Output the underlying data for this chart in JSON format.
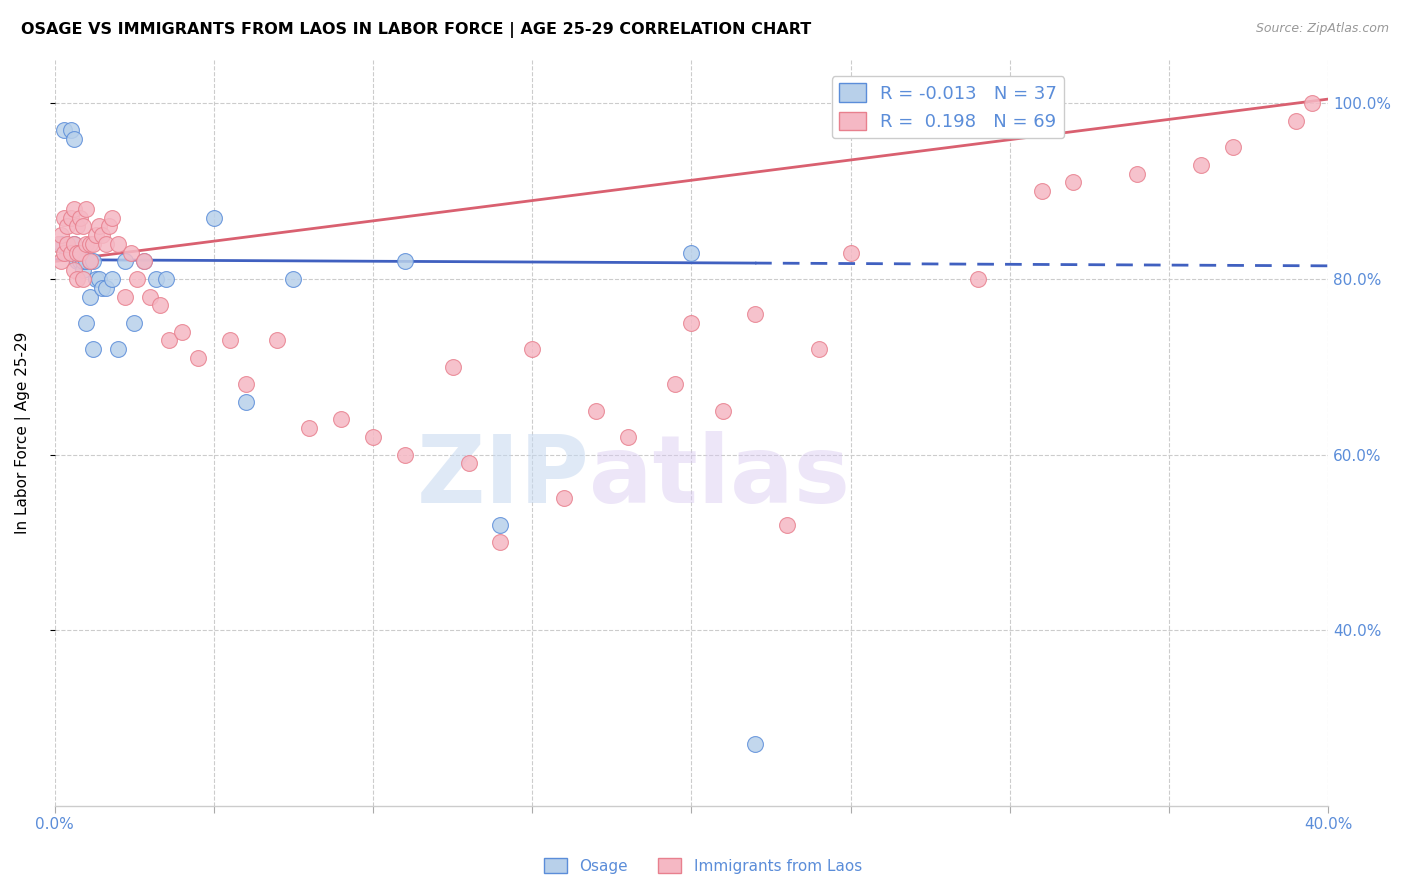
{
  "title": "OSAGE VS IMMIGRANTS FROM LAOS IN LABOR FORCE | AGE 25-29 CORRELATION CHART",
  "source": "Source: ZipAtlas.com",
  "ylabel": "In Labor Force | Age 25-29",
  "xlim": [
    0.0,
    0.4
  ],
  "ylim": [
    0.2,
    1.05
  ],
  "xticks": [
    0.0,
    0.05,
    0.1,
    0.15,
    0.2,
    0.25,
    0.3,
    0.35,
    0.4
  ],
  "yticks_right": [
    0.4,
    0.6,
    0.8,
    1.0
  ],
  "yticklabels_right": [
    "40.0%",
    "60.0%",
    "80.0%",
    "100.0%"
  ],
  "watermark_zip": "ZIP",
  "watermark_atlas": "atlas",
  "legend_r_blue": "-0.013",
  "legend_n_blue": "37",
  "legend_r_pink": "0.198",
  "legend_n_pink": "69",
  "blue_fill": "#b8d0ea",
  "pink_fill": "#f5b8c4",
  "blue_edge": "#5b8dd9",
  "pink_edge": "#e8808e",
  "blue_line_color": "#4060c0",
  "pink_line_color": "#d96070",
  "grid_color": "#cccccc",
  "axis_color": "#5b8dd9",
  "blue_scatter_x": [
    0.002,
    0.003,
    0.004,
    0.005,
    0.005,
    0.006,
    0.006,
    0.007,
    0.007,
    0.008,
    0.008,
    0.009,
    0.009,
    0.01,
    0.01,
    0.011,
    0.011,
    0.012,
    0.012,
    0.013,
    0.014,
    0.015,
    0.016,
    0.018,
    0.02,
    0.022,
    0.025,
    0.028,
    0.032,
    0.035,
    0.05,
    0.06,
    0.075,
    0.11,
    0.14,
    0.2,
    0.22
  ],
  "blue_scatter_y": [
    0.84,
    0.97,
    0.83,
    0.97,
    0.83,
    0.96,
    0.84,
    0.83,
    0.82,
    0.83,
    0.82,
    0.81,
    0.82,
    0.82,
    0.75,
    0.82,
    0.78,
    0.82,
    0.72,
    0.8,
    0.8,
    0.79,
    0.79,
    0.8,
    0.72,
    0.82,
    0.75,
    0.82,
    0.8,
    0.8,
    0.87,
    0.66,
    0.8,
    0.82,
    0.52,
    0.83,
    0.27
  ],
  "pink_scatter_x": [
    0.001,
    0.002,
    0.002,
    0.003,
    0.003,
    0.004,
    0.004,
    0.005,
    0.005,
    0.006,
    0.006,
    0.006,
    0.007,
    0.007,
    0.007,
    0.008,
    0.008,
    0.009,
    0.009,
    0.01,
    0.01,
    0.011,
    0.011,
    0.012,
    0.013,
    0.014,
    0.015,
    0.016,
    0.017,
    0.018,
    0.02,
    0.022,
    0.024,
    0.026,
    0.028,
    0.03,
    0.033,
    0.036,
    0.04,
    0.045,
    0.055,
    0.06,
    0.07,
    0.08,
    0.09,
    0.1,
    0.11,
    0.13,
    0.16,
    0.18,
    0.21,
    0.24,
    0.29,
    0.31,
    0.32,
    0.34,
    0.36,
    0.37,
    0.39,
    0.395,
    0.2,
    0.22,
    0.25,
    0.15,
    0.125,
    0.17,
    0.195,
    0.14,
    0.23
  ],
  "pink_scatter_y": [
    0.84,
    0.85,
    0.82,
    0.87,
    0.83,
    0.86,
    0.84,
    0.87,
    0.83,
    0.88,
    0.84,
    0.81,
    0.86,
    0.83,
    0.8,
    0.87,
    0.83,
    0.86,
    0.8,
    0.88,
    0.84,
    0.84,
    0.82,
    0.84,
    0.85,
    0.86,
    0.85,
    0.84,
    0.86,
    0.87,
    0.84,
    0.78,
    0.83,
    0.8,
    0.82,
    0.78,
    0.77,
    0.73,
    0.74,
    0.71,
    0.73,
    0.68,
    0.73,
    0.63,
    0.64,
    0.62,
    0.6,
    0.59,
    0.55,
    0.62,
    0.65,
    0.72,
    0.8,
    0.9,
    0.91,
    0.92,
    0.93,
    0.95,
    0.98,
    1.0,
    0.75,
    0.76,
    0.83,
    0.72,
    0.7,
    0.65,
    0.68,
    0.5,
    0.52
  ]
}
